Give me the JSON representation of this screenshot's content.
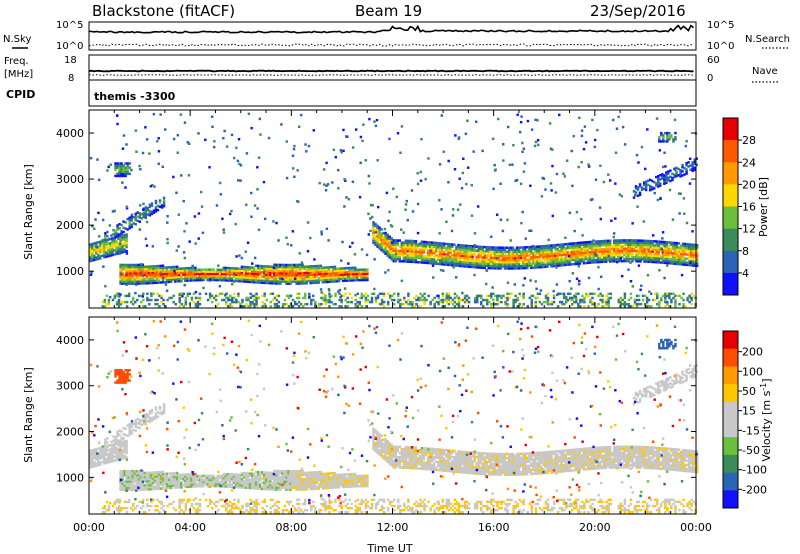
{
  "header": {
    "title_left": "Blackstone (fitACF)",
    "title_center": "Beam 19",
    "title_right": "23/Sep/2016"
  },
  "top_panel": {
    "left_label": "N.Sky",
    "right_label": "N.Search",
    "left_ticks": [
      "10^5",
      "10^0"
    ],
    "right_ticks": [
      "10^5",
      "10^0"
    ]
  },
  "freq_panel": {
    "left_label_1": "Freq.",
    "left_label_2": "[MHz]",
    "right_label": "Nave",
    "left_ticks": [
      "18",
      "8"
    ],
    "right_ticks": [
      "60",
      "0"
    ]
  },
  "cpid_panel": {
    "label": "CPID",
    "text": "themis -3300"
  },
  "colors": {
    "power": [
      "#1010ff",
      "#2a64b4",
      "#3c8c5a",
      "#6cbf3c",
      "#ffd700",
      "#ff9a00",
      "#ff5a00",
      "#e60000"
    ],
    "velocity": [
      "#e60000",
      "#ff4d00",
      "#ff9a00",
      "#ffc800",
      "#c8c8c8",
      "#c8c8c8",
      "#6cbf3c",
      "#3c8c5a",
      "#2a64b4",
      "#1010ff"
    ]
  },
  "chart_data": [
    {
      "type": "heatmap",
      "quantity": "Power",
      "xlabel": "",
      "ylabel": "Slant Range [km]",
      "yticks": [
        "1000",
        "2000",
        "3000",
        "4000"
      ],
      "ylim": [
        200,
        4500
      ],
      "xlim_hours": [
        0,
        24
      ],
      "colorbar_label": "Power [dB]",
      "colorbar_ticks": [
        "4",
        "8",
        "12",
        "16",
        "20",
        "24",
        "28"
      ],
      "colorbar_range": [
        0,
        32
      ],
      "features": [
        {
          "name": "E-region-echo",
          "t_start": 1.2,
          "t_end": 11.0,
          "range_center": 920,
          "range_width": 300,
          "level": 24
        },
        {
          "name": "F-region-echo",
          "t_start": 11.2,
          "t_end": 24.0,
          "range_center": 1400,
          "range_width": 350,
          "level": 20
        },
        {
          "name": "dawn-band",
          "t_start": 0.0,
          "t_end": 1.5,
          "range_center": 1400,
          "range_width": 400,
          "level": 18
        }
      ]
    },
    {
      "type": "heatmap",
      "quantity": "Velocity",
      "xlabel": "Time UT",
      "ylabel": "Slant Range [km]",
      "xticks": [
        "00:00",
        "04:00",
        "08:00",
        "12:00",
        "16:00",
        "20:00",
        "00:00"
      ],
      "yticks": [
        "1000",
        "2000",
        "3000",
        "4000"
      ],
      "ylim": [
        200,
        4500
      ],
      "xlim_hours": [
        0,
        24
      ],
      "colorbar_label": "Velocity [m s^-1]",
      "colorbar_ticks": [
        "200",
        "100",
        "50",
        "15",
        "-15",
        "-50",
        "-100",
        "-200"
      ],
      "colorbar_range": [
        -250,
        250
      ]
    }
  ]
}
